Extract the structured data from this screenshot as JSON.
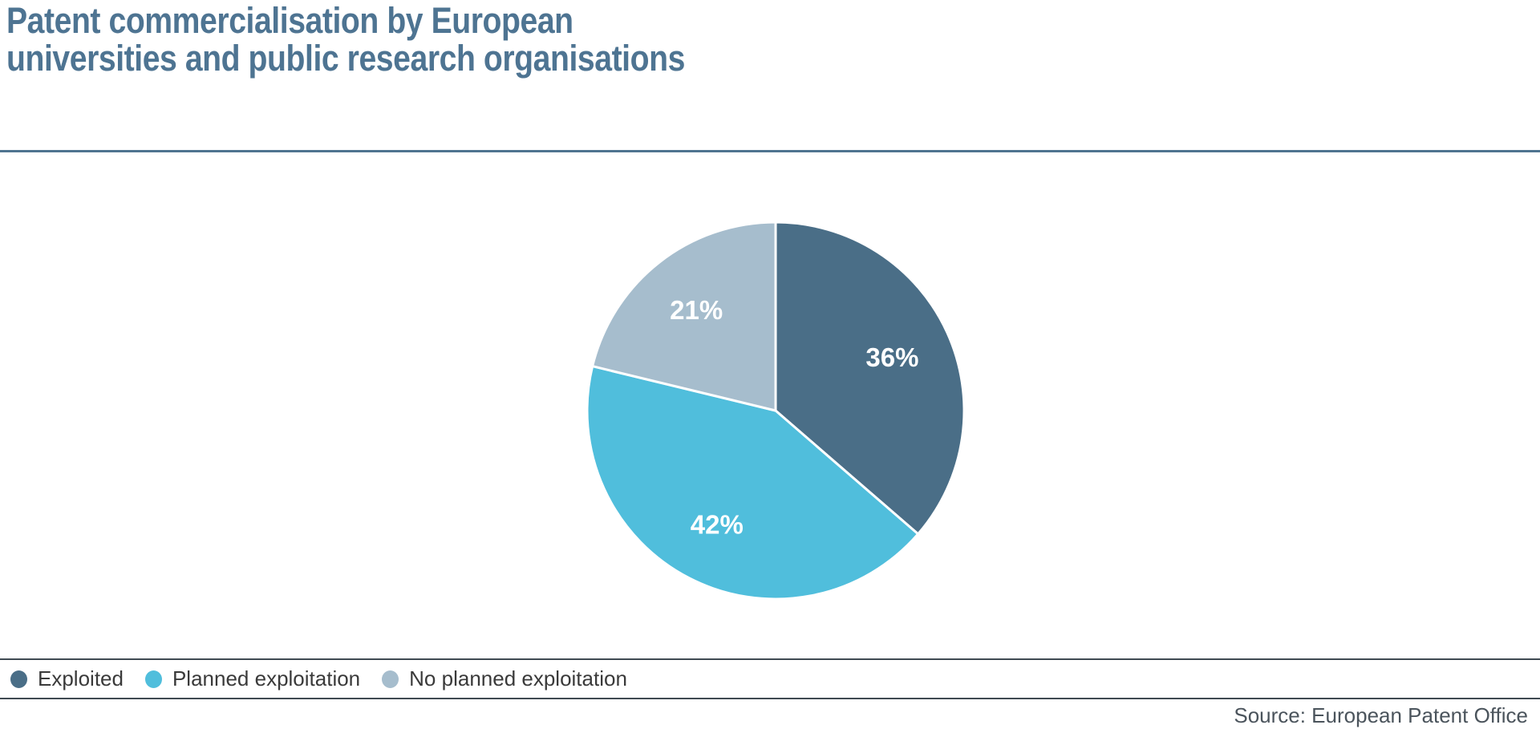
{
  "header": {
    "title_lines": [
      "Patent commercialisation by European",
      "universities and public research organisations"
    ]
  },
  "chart_data": {
    "type": "pie",
    "title": "Patent commercialisation by European universities and public research organisations",
    "segments": [
      {
        "label": "Exploited",
        "value_pct": 36,
        "display_label": "36%",
        "color": "#4a6e87",
        "label_radius_frac": 0.68
      },
      {
        "label": "Planned exploitation",
        "value_pct": 42,
        "display_label": "42%",
        "color": "#50bedc",
        "label_radius_frac": 0.68
      },
      {
        "label": "No planned exploitation",
        "value_pct": 21,
        "display_label": "21%",
        "color": "#a6bdcd",
        "label_radius_frac": 0.68
      }
    ],
    "start_angle_deg": 0,
    "direction": "clockwise",
    "slice_label_color": "#ffffff",
    "slice_border_color": "#ffffff",
    "legend_position": "bottom"
  },
  "footer": {
    "source": "Source: European Patent Office"
  },
  "colors": {
    "title_blue": "#4e7492",
    "divider_blue": "#4f7490",
    "legend_rule": "#3f4a52",
    "legend_text": "#3a3a3a",
    "source_text": "#4b545c",
    "background": "#ffffff"
  }
}
